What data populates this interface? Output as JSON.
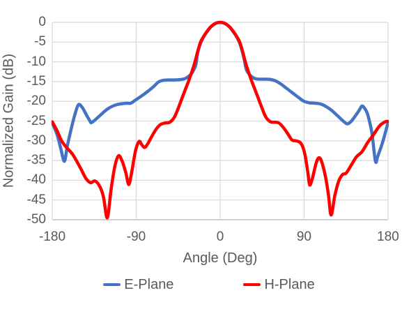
{
  "chart_data": {
    "type": "line",
    "title": "",
    "xlabel": "Angle (Deg)",
    "ylabel": "Normalized Gain (dB)",
    "xlim": [
      -180,
      180
    ],
    "ylim": [
      -50,
      0
    ],
    "xticks": [
      -180,
      -90,
      0,
      90,
      180
    ],
    "yticks": [
      0,
      -5,
      -10,
      -15,
      -20,
      -25,
      -30,
      -35,
      -40,
      -45,
      -50
    ],
    "grid": true,
    "legend_position": "bottom-center",
    "colors": {
      "gridline": "#d9d9d9",
      "axis_line": "#bfbfbf",
      "text": "#595959",
      "background": "#ffffff",
      "e_plane": "#4472c4",
      "h_plane": "#ff0000"
    },
    "series": [
      {
        "name": "E-Plane",
        "color": "#4472c4",
        "points": [
          [
            -180,
            -25.5
          ],
          [
            -175,
            -28.3
          ],
          [
            -171,
            -31.8
          ],
          [
            -167,
            -35.2
          ],
          [
            -164,
            -31.5
          ],
          [
            -160,
            -27.3
          ],
          [
            -156,
            -23.6
          ],
          [
            -152,
            -20.9
          ],
          [
            -148,
            -21.5
          ],
          [
            -143,
            -23.6
          ],
          [
            -140,
            -24.8
          ],
          [
            -138,
            -25.4
          ],
          [
            -133,
            -24.5
          ],
          [
            -127,
            -23.2
          ],
          [
            -121,
            -22.0
          ],
          [
            -115,
            -21.2
          ],
          [
            -110,
            -20.8
          ],
          [
            -105,
            -20.6
          ],
          [
            -100,
            -20.5
          ],
          [
            -96,
            -20.5
          ],
          [
            -92,
            -19.9
          ],
          [
            -87,
            -19.1
          ],
          [
            -81,
            -18.1
          ],
          [
            -76,
            -17.2
          ],
          [
            -71,
            -16.2
          ],
          [
            -66,
            -15.1
          ],
          [
            -61,
            -14.7
          ],
          [
            -55,
            -14.6
          ],
          [
            -49,
            -14.6
          ],
          [
            -43,
            -14.5
          ],
          [
            -38,
            -14.3
          ],
          [
            -34,
            -13.7
          ],
          [
            -31,
            -13.1
          ],
          [
            -28,
            -11.9
          ],
          [
            -26,
            -10.7
          ],
          [
            -24,
            -7.6
          ],
          [
            -21,
            -5.3
          ],
          [
            -18,
            -3.8
          ],
          [
            -15,
            -2.7
          ],
          [
            -10,
            -1.2
          ],
          [
            -5,
            -0.3
          ],
          [
            0,
            -0.05
          ],
          [
            5,
            -0.3
          ],
          [
            10,
            -1.2
          ],
          [
            15,
            -2.7
          ],
          [
            18,
            -3.8
          ],
          [
            21,
            -5.3
          ],
          [
            24,
            -7.6
          ],
          [
            26,
            -9.6
          ],
          [
            28,
            -11.9
          ],
          [
            31,
            -13.1
          ],
          [
            34,
            -13.8
          ],
          [
            38,
            -14.3
          ],
          [
            43,
            -14.4
          ],
          [
            49,
            -14.4
          ],
          [
            55,
            -14.5
          ],
          [
            60,
            -14.9
          ],
          [
            65,
            -15.6
          ],
          [
            70,
            -16.5
          ],
          [
            75,
            -17.4
          ],
          [
            80,
            -18.3
          ],
          [
            85,
            -19.2
          ],
          [
            90,
            -20.0
          ],
          [
            96,
            -20.4
          ],
          [
            102,
            -20.5
          ],
          [
            108,
            -20.7
          ],
          [
            114,
            -21.4
          ],
          [
            120,
            -22.4
          ],
          [
            126,
            -23.7
          ],
          [
            131,
            -24.8
          ],
          [
            136,
            -25.7
          ],
          [
            140,
            -25.2
          ],
          [
            145,
            -23.7
          ],
          [
            149,
            -22.3
          ],
          [
            152,
            -21.2
          ],
          [
            155,
            -21.8
          ],
          [
            158,
            -23.2
          ],
          [
            161,
            -26.0
          ],
          [
            163,
            -28.5
          ],
          [
            166.5,
            -35.2
          ],
          [
            169,
            -33.9
          ],
          [
            174,
            -30.5
          ],
          [
            180,
            -25.4
          ]
        ]
      },
      {
        "name": "H-Plane",
        "color": "#ff0000",
        "points": [
          [
            -180,
            -25.2
          ],
          [
            -175,
            -27.4
          ],
          [
            -170,
            -30.0
          ],
          [
            -165,
            -31.6
          ],
          [
            -158,
            -33.5
          ],
          [
            -150,
            -36.8
          ],
          [
            -144,
            -39.5
          ],
          [
            -139,
            -40.6
          ],
          [
            -134,
            -40.2
          ],
          [
            -129,
            -41.6
          ],
          [
            -125,
            -44.3
          ],
          [
            -121,
            -49.5
          ],
          [
            -117,
            -42.5
          ],
          [
            -113,
            -36.6
          ],
          [
            -109,
            -33.8
          ],
          [
            -105,
            -35.2
          ],
          [
            -101,
            -38.2
          ],
          [
            -98,
            -41.1
          ],
          [
            -95,
            -38.2
          ],
          [
            -91,
            -32.8
          ],
          [
            -87,
            -30.2
          ],
          [
            -84,
            -31.0
          ],
          [
            -81,
            -31.7
          ],
          [
            -78,
            -30.9
          ],
          [
            -74,
            -29.2
          ],
          [
            -69,
            -27.2
          ],
          [
            -64,
            -25.9
          ],
          [
            -59,
            -25.5
          ],
          [
            -54,
            -25.3
          ],
          [
            -49,
            -24.0
          ],
          [
            -45,
            -21.8
          ],
          [
            -41,
            -19.3
          ],
          [
            -37,
            -16.8
          ],
          [
            -34,
            -15.0
          ],
          [
            -30,
            -12.3
          ],
          [
            -27,
            -10.0
          ],
          [
            -24,
            -7.3
          ],
          [
            -21,
            -5.0
          ],
          [
            -18,
            -3.7
          ],
          [
            -15,
            -2.6
          ],
          [
            -10,
            -1.1
          ],
          [
            -5,
            -0.25
          ],
          [
            0,
            0
          ],
          [
            5,
            -0.25
          ],
          [
            10,
            -1.1
          ],
          [
            15,
            -2.6
          ],
          [
            18,
            -3.7
          ],
          [
            21,
            -5.0
          ],
          [
            24,
            -7.3
          ],
          [
            27,
            -10.0
          ],
          [
            30,
            -12.3
          ],
          [
            34,
            -15.0
          ],
          [
            37,
            -16.8
          ],
          [
            41,
            -19.3
          ],
          [
            45,
            -21.8
          ],
          [
            49,
            -24.0
          ],
          [
            54,
            -25.2
          ],
          [
            59,
            -25.3
          ],
          [
            63,
            -25.5
          ],
          [
            68,
            -26.7
          ],
          [
            73,
            -28.4
          ],
          [
            77,
            -29.8
          ],
          [
            81,
            -30.0
          ],
          [
            85,
            -30.3
          ],
          [
            88,
            -31.2
          ],
          [
            91,
            -33.6
          ],
          [
            94,
            -38.0
          ],
          [
            96,
            -41.2
          ],
          [
            99,
            -39.4
          ],
          [
            103,
            -35.6
          ],
          [
            106,
            -34.3
          ],
          [
            109,
            -35.4
          ],
          [
            113,
            -39.2
          ],
          [
            116,
            -43.5
          ],
          [
            119,
            -48.8
          ],
          [
            123,
            -43.8
          ],
          [
            127,
            -40.3
          ],
          [
            131,
            -38.6
          ],
          [
            135,
            -38.2
          ],
          [
            140,
            -36.4
          ],
          [
            146,
            -34.1
          ],
          [
            152,
            -32.8
          ],
          [
            158,
            -30.5
          ],
          [
            164,
            -28.6
          ],
          [
            171,
            -26.2
          ],
          [
            177,
            -25.2
          ],
          [
            180,
            -25.1
          ]
        ]
      }
    ]
  },
  "legend": {
    "items": [
      {
        "label": "E-Plane",
        "color": "#4472c4"
      },
      {
        "label": "H-Plane",
        "color": "#ff0000"
      }
    ]
  }
}
